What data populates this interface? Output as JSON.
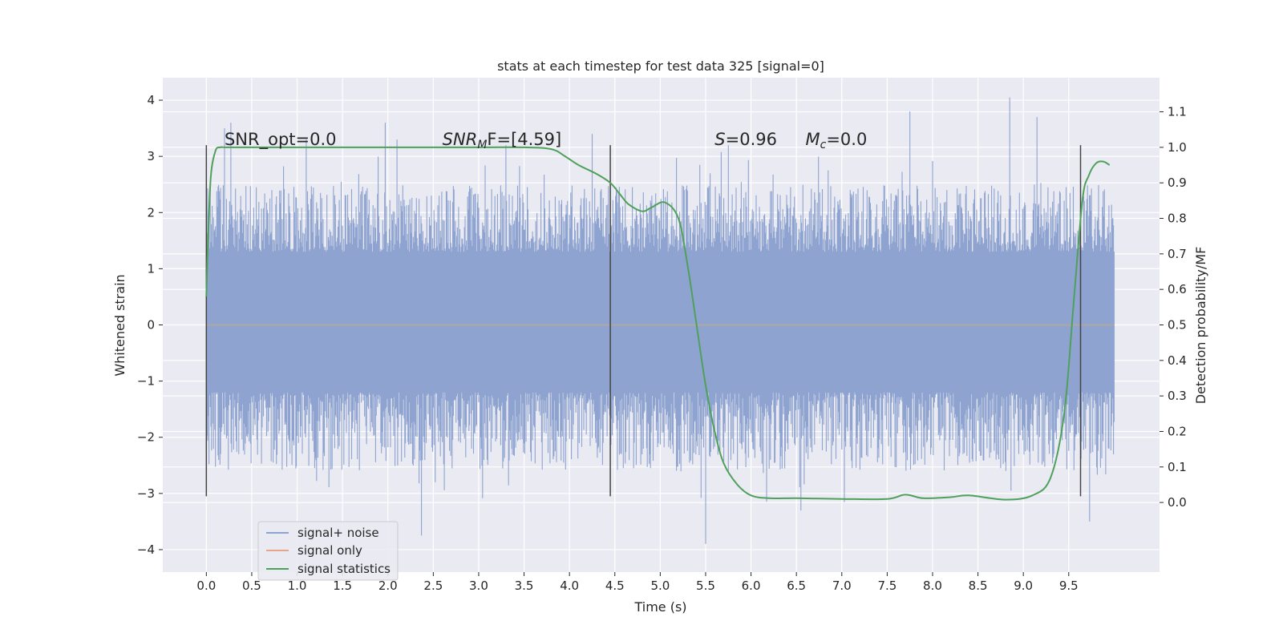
{
  "chart_data": {
    "type": "line",
    "title": "stats at each timestep for test data 325 [signal=0]",
    "xlabel": "Time (s)",
    "ylabel": "Whitened strain",
    "ylabel_right": "Detection probability/MF",
    "xlim": [
      -0.48,
      10.5
    ],
    "ylim": [
      -4.4,
      4.4
    ],
    "ylim_right": [
      -0.196,
      1.196
    ],
    "x_ticks": [
      "0.0",
      "0.5",
      "1.0",
      "1.5",
      "2.0",
      "2.5",
      "3.0",
      "3.5",
      "4.0",
      "4.5",
      "5.0",
      "5.5",
      "6.0",
      "6.5",
      "7.0",
      "7.5",
      "8.0",
      "8.5",
      "9.0",
      "9.5"
    ],
    "y_ticks": [
      "4",
      "3",
      "2",
      "1",
      "0",
      "−1",
      "−2",
      "−3",
      "−4"
    ],
    "y_ticks_right": [
      "1.1",
      "1.0",
      "0.9",
      "0.8",
      "0.7",
      "0.6",
      "0.5",
      "0.4",
      "0.3",
      "0.2",
      "0.1",
      "0.0"
    ],
    "grid": true,
    "legend_position": "lower-left",
    "annotations": [
      {
        "x": 0.2,
        "y": 3.2,
        "prefix": "SNR_opt=0.0",
        "sym": "",
        "sub": "",
        "rest": ""
      },
      {
        "x": 2.6,
        "y": 3.2,
        "prefix": "",
        "sym": "SNR",
        "sub": "M",
        "rest": "F=[4.59]"
      },
      {
        "x": 5.6,
        "y": 3.2,
        "prefix": "",
        "sym": "S",
        "sub": "",
        "rest": "=0.96"
      },
      {
        "x": 6.6,
        "y": 3.2,
        "prefix": "",
        "sym": "M",
        "sub": "c",
        "rest": "=0.0"
      }
    ],
    "vertical_markers": [
      0.0,
      4.45,
      9.63
    ],
    "vertical_marker_range": [
      -3.05,
      3.2
    ],
    "series": [
      {
        "name": "signal+ noise",
        "color": "#8ea3d0",
        "x_range": [
          0.0,
          10.0
        ],
        "core_band": [
          -1.2,
          1.3
        ],
        "typical_extent": [
          -2.6,
          2.5
        ],
        "peak_values": [
          [
            0.2,
            3.5
          ],
          [
            0.27,
            3.6
          ],
          [
            1.1,
            3.3
          ],
          [
            1.97,
            3.6
          ],
          [
            2.1,
            3.3
          ],
          [
            2.37,
            -3.75
          ],
          [
            3.3,
            3.2
          ],
          [
            4.25,
            3.4
          ],
          [
            5.5,
            -3.9
          ],
          [
            5.75,
            3.2
          ],
          [
            7.75,
            3.8
          ],
          [
            8.85,
            4.05
          ],
          [
            9.15,
            3.7
          ],
          [
            9.73,
            -3.5
          ]
        ]
      },
      {
        "name": "signal only",
        "color": "#e5a68c",
        "x": [
          0.0,
          10.0
        ],
        "y": [
          0.0,
          0.0
        ]
      },
      {
        "name": "signal statistics",
        "color": "#4fa05b",
        "axis": "right",
        "x": [
          0.0,
          0.02,
          0.05,
          0.1,
          0.15,
          0.2,
          0.3,
          1.0,
          2.0,
          3.0,
          3.5,
          3.8,
          3.95,
          4.1,
          4.3,
          4.45,
          4.55,
          4.65,
          4.8,
          4.9,
          5.05,
          5.2,
          5.3,
          5.4,
          5.5,
          5.6,
          5.7,
          5.85,
          6.0,
          6.2,
          6.5,
          7.0,
          7.5,
          7.7,
          7.9,
          8.2,
          8.4,
          8.8,
          9.1,
          9.3,
          9.45,
          9.55,
          9.65,
          9.72,
          9.8,
          9.88,
          9.95
        ],
        "y": [
          0.58,
          0.75,
          0.92,
          0.99,
          1.0,
          1.0,
          1.0,
          1.0,
          1.0,
          1.0,
          1.0,
          0.995,
          0.975,
          0.95,
          0.925,
          0.9,
          0.87,
          0.84,
          0.82,
          0.83,
          0.845,
          0.8,
          0.67,
          0.5,
          0.33,
          0.2,
          0.11,
          0.05,
          0.02,
          0.012,
          0.012,
          0.01,
          0.01,
          0.022,
          0.012,
          0.015,
          0.02,
          0.008,
          0.02,
          0.07,
          0.25,
          0.55,
          0.85,
          0.92,
          0.955,
          0.96,
          0.95
        ]
      }
    ]
  }
}
